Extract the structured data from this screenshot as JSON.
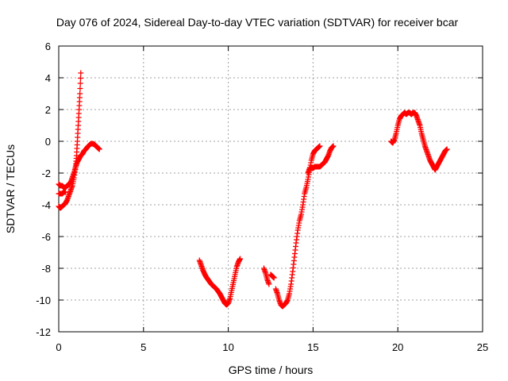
{
  "chart_data": {
    "type": "scatter",
    "title": "Day 076 of 2024, Sidereal Day-to-day VTEC variation (SDTVAR) for receiver bcar",
    "xlabel": "GPS time / hours",
    "ylabel": "SDTVAR / TECUs",
    "xlim": [
      0,
      25
    ],
    "ylim": [
      -12,
      6
    ],
    "xticks": [
      0,
      5,
      10,
      15,
      20,
      25
    ],
    "yticks": [
      -12,
      -10,
      -8,
      -6,
      -4,
      -2,
      0,
      2,
      4,
      6
    ],
    "grid": true,
    "marker": "plus",
    "series": [
      {
        "color": "#ff0000",
        "segments": [
          [
            [
              0.0,
              -2.7
            ],
            [
              0.1,
              -2.8
            ],
            [
              0.2,
              -2.8
            ],
            [
              0.3,
              -2.9
            ],
            [
              0.4,
              -2.9
            ],
            [
              0.5,
              -2.8
            ],
            [
              0.6,
              -2.7
            ],
            [
              0.7,
              -2.6
            ],
            [
              0.8,
              -2.3
            ],
            [
              0.9,
              -2.0
            ],
            [
              1.0,
              -1.6
            ],
            [
              1.1,
              -1.3
            ],
            [
              1.2,
              -1.1
            ],
            [
              1.3,
              -0.9
            ],
            [
              1.4,
              -0.8
            ],
            [
              1.5,
              -0.6
            ],
            [
              1.6,
              -0.5
            ],
            [
              1.7,
              -0.35
            ],
            [
              1.8,
              -0.25
            ],
            [
              1.9,
              -0.15
            ],
            [
              2.0,
              -0.15
            ],
            [
              2.1,
              -0.2
            ],
            [
              2.2,
              -0.3
            ],
            [
              2.3,
              -0.4
            ],
            [
              2.4,
              -0.5
            ]
          ],
          [
            [
              0.0,
              -4.1
            ],
            [
              0.1,
              -4.2
            ],
            [
              0.2,
              -4.1
            ],
            [
              0.3,
              -4.0
            ],
            [
              0.4,
              -3.9
            ],
            [
              0.5,
              -3.7
            ],
            [
              0.6,
              -3.4
            ],
            [
              0.7,
              -3.1
            ],
            [
              0.8,
              -2.8
            ],
            [
              0.9,
              -2.3
            ],
            [
              1.0,
              -1.6
            ],
            [
              1.05,
              -0.9
            ],
            [
              1.1,
              0.0
            ],
            [
              1.15,
              1.0
            ],
            [
              1.2,
              2.0
            ],
            [
              1.25,
              3.0
            ],
            [
              1.3,
              4.3
            ]
          ],
          [
            [
              0.0,
              -3.3
            ],
            [
              0.1,
              -3.3
            ],
            [
              0.2,
              -3.3
            ],
            [
              0.3,
              -3.2
            ],
            [
              0.4,
              -3.2
            ]
          ],
          [
            [
              8.3,
              -7.5
            ],
            [
              8.4,
              -7.8
            ],
            [
              8.5,
              -8.1
            ],
            [
              8.6,
              -8.35
            ],
            [
              8.7,
              -8.55
            ],
            [
              8.8,
              -8.7
            ],
            [
              8.9,
              -8.85
            ],
            [
              9.0,
              -9.0
            ],
            [
              9.1,
              -9.1
            ],
            [
              9.2,
              -9.2
            ],
            [
              9.3,
              -9.3
            ],
            [
              9.4,
              -9.45
            ],
            [
              9.5,
              -9.6
            ],
            [
              9.6,
              -9.8
            ],
            [
              9.7,
              -10.0
            ],
            [
              9.8,
              -10.2
            ],
            [
              9.9,
              -10.3
            ],
            [
              10.0,
              -10.2
            ],
            [
              10.1,
              -9.9
            ],
            [
              10.2,
              -9.4
            ],
            [
              10.3,
              -8.9
            ],
            [
              10.4,
              -8.4
            ],
            [
              10.5,
              -7.9
            ],
            [
              10.6,
              -7.6
            ],
            [
              10.7,
              -7.4
            ]
          ],
          [
            [
              12.1,
              -8.0
            ],
            [
              12.2,
              -8.3
            ],
            [
              12.3,
              -8.7
            ],
            [
              12.4,
              -9.0
            ]
          ],
          [
            [
              12.5,
              -8.4
            ],
            [
              12.6,
              -8.5
            ],
            [
              12.7,
              -8.6
            ]
          ],
          [
            [
              12.8,
              -9.3
            ],
            [
              12.9,
              -9.6
            ],
            [
              13.0,
              -10.0
            ],
            [
              13.1,
              -10.3
            ],
            [
              13.2,
              -10.4
            ],
            [
              13.3,
              -10.3
            ],
            [
              13.4,
              -10.2
            ],
            [
              13.5,
              -10.0
            ],
            [
              13.6,
              -9.6
            ],
            [
              13.7,
              -9.0
            ],
            [
              13.8,
              -8.2
            ],
            [
              13.9,
              -7.3
            ],
            [
              14.0,
              -6.4
            ],
            [
              14.1,
              -5.6
            ],
            [
              14.2,
              -5.0
            ],
            [
              14.3,
              -4.6
            ],
            [
              14.4,
              -4.0
            ],
            [
              14.5,
              -3.3
            ],
            [
              14.6,
              -2.9
            ],
            [
              14.7,
              -2.4
            ],
            [
              14.8,
              -1.8
            ],
            [
              14.9,
              -1.2
            ],
            [
              15.0,
              -0.8
            ],
            [
              15.1,
              -0.6
            ],
            [
              15.2,
              -0.5
            ],
            [
              15.3,
              -0.4
            ],
            [
              15.4,
              -0.3
            ]
          ],
          [
            [
              14.7,
              -2.0
            ],
            [
              14.8,
              -1.7
            ],
            [
              14.9,
              -1.7
            ],
            [
              15.0,
              -1.7
            ],
            [
              15.1,
              -1.6
            ],
            [
              15.2,
              -1.6
            ],
            [
              15.3,
              -1.6
            ],
            [
              15.4,
              -1.6
            ],
            [
              15.5,
              -1.5
            ],
            [
              15.6,
              -1.4
            ],
            [
              15.7,
              -1.3
            ],
            [
              15.8,
              -1.1
            ],
            [
              15.9,
              -0.9
            ],
            [
              16.0,
              -0.6
            ],
            [
              16.1,
              -0.4
            ],
            [
              16.2,
              -0.3
            ]
          ],
          [
            [
              19.6,
              0.0
            ],
            [
              19.7,
              -0.1
            ],
            [
              19.8,
              0.1
            ],
            [
              19.9,
              0.5
            ],
            [
              20.0,
              1.0
            ],
            [
              20.1,
              1.4
            ],
            [
              20.2,
              1.6
            ],
            [
              20.3,
              1.7
            ],
            [
              20.4,
              1.8
            ],
            [
              20.5,
              1.7
            ],
            [
              20.6,
              1.8
            ],
            [
              20.7,
              1.8
            ],
            [
              20.8,
              1.7
            ],
            [
              20.9,
              1.8
            ],
            [
              21.0,
              1.8
            ],
            [
              21.1,
              1.6
            ],
            [
              21.2,
              1.3
            ],
            [
              21.3,
              1.0
            ],
            [
              21.4,
              0.5
            ],
            [
              21.5,
              0.1
            ],
            [
              21.6,
              -0.3
            ],
            [
              21.7,
              -0.6
            ],
            [
              21.8,
              -0.9
            ],
            [
              21.9,
              -1.2
            ],
            [
              22.0,
              -1.4
            ],
            [
              22.1,
              -1.6
            ],
            [
              22.2,
              -1.8
            ],
            [
              22.3,
              -1.6
            ],
            [
              22.4,
              -1.4
            ],
            [
              22.5,
              -1.2
            ],
            [
              22.6,
              -1.0
            ],
            [
              22.7,
              -0.8
            ],
            [
              22.8,
              -0.6
            ],
            [
              22.9,
              -0.5
            ]
          ]
        ]
      }
    ]
  }
}
